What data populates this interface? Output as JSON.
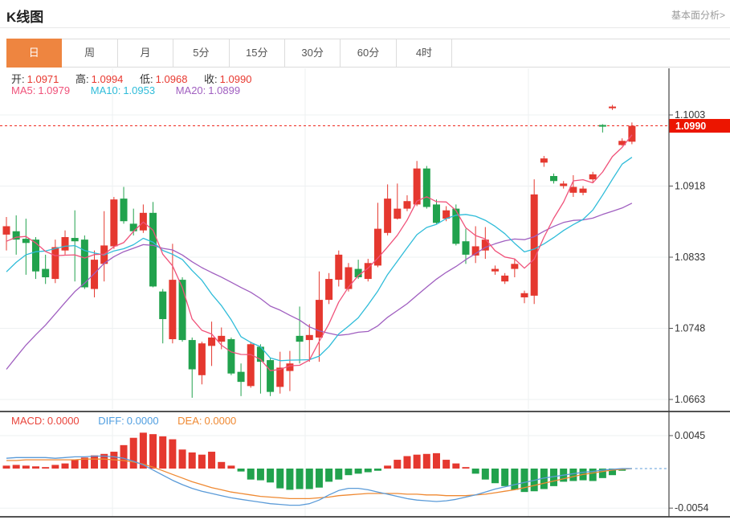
{
  "header": {
    "title": "K线图",
    "analysis_link": "基本面分析>"
  },
  "tabs": {
    "selected_index": 0,
    "items": [
      {
        "label": "日"
      },
      {
        "label": "周"
      },
      {
        "label": "月"
      },
      {
        "label": "5分"
      },
      {
        "label": "15分"
      },
      {
        "label": "30分"
      },
      {
        "label": "60分"
      },
      {
        "label": "4时"
      }
    ]
  },
  "legend": {
    "ohlc": [
      {
        "label": "开:",
        "value": "1.0971",
        "color": "#e8382f"
      },
      {
        "label": "高:",
        "value": "1.0994",
        "color": "#e8382f"
      },
      {
        "label": "低:",
        "value": "1.0968",
        "color": "#e8382f"
      },
      {
        "label": "收:",
        "value": "1.0990",
        "color": "#e8382f"
      }
    ],
    "ma": [
      {
        "label": "MA5:",
        "value": "1.0979",
        "color": "#f0527a"
      },
      {
        "label": "MA10:",
        "value": "1.0953",
        "color": "#2fbcd9"
      },
      {
        "label": "MA20:",
        "value": "1.0899",
        "color": "#a05fc0"
      }
    ],
    "macd": [
      {
        "label": "MACD:",
        "value": "0.0000",
        "color": "#e9443b"
      },
      {
        "label": "DIFF:",
        "value": "0.0000",
        "color": "#4f9ee0"
      },
      {
        "label": "DEA:",
        "value": "0.0000",
        "color": "#ef8932"
      }
    ]
  },
  "chart_data": {
    "type": "candlestick_with_macd",
    "period_shown": "日",
    "price_axis_ticks": [
      1.1003,
      1.0918,
      1.0833,
      1.0748,
      1.0663
    ],
    "current_price": 1.099,
    "last_ohlc": {
      "open": 1.0971,
      "high": 1.0994,
      "low": 1.0968,
      "close": 1.099
    },
    "ma_values_shown": {
      "MA5": 1.0979,
      "MA10": 1.0953,
      "MA20": 1.0899
    },
    "macd_values_shown": {
      "MACD": 0.0,
      "DIFF": 0.0,
      "DEA": 0.0
    },
    "macd_axis_ticks": [
      0.0045,
      -0.0054
    ],
    "candles_ohlc": [
      [
        1.086,
        1.0881,
        1.0841,
        1.087
      ],
      [
        1.0864,
        1.0883,
        1.0836,
        1.0854
      ],
      [
        1.0855,
        1.0879,
        1.0812,
        1.085
      ],
      [
        1.0854,
        1.0857,
        1.0807,
        1.0816
      ],
      [
        1.0819,
        1.0836,
        1.0801,
        1.0809
      ],
      [
        1.0807,
        1.0854,
        1.0802,
        1.0845
      ],
      [
        1.0841,
        1.0865,
        1.0836,
        1.0857
      ],
      [
        1.0856,
        1.0889,
        1.0804,
        1.0852
      ],
      [
        1.0854,
        1.0859,
        1.0795,
        1.0797
      ],
      [
        1.0795,
        1.0841,
        1.0785,
        1.083
      ],
      [
        1.0825,
        1.0888,
        1.0804,
        1.0847
      ],
      [
        1.0846,
        1.0905,
        1.0843,
        1.0902
      ],
      [
        1.0903,
        1.0917,
        1.0873,
        1.0876
      ],
      [
        1.0873,
        1.0891,
        1.0859,
        1.0864
      ],
      [
        1.0865,
        1.0896,
        1.0862,
        1.0886
      ],
      [
        1.0886,
        1.0899,
        1.0797,
        1.0798
      ],
      [
        1.0792,
        1.0795,
        1.073,
        1.0759
      ],
      [
        1.0735,
        1.0849,
        1.073,
        1.0806
      ],
      [
        1.0806,
        1.0809,
        1.0732,
        1.0734
      ],
      [
        1.0734,
        1.0737,
        1.0665,
        1.0699
      ],
      [
        1.0692,
        1.0732,
        1.0681,
        1.073
      ],
      [
        1.0727,
        1.0756,
        1.0703,
        1.0737
      ],
      [
        1.0732,
        1.0749,
        1.0723,
        1.0739
      ],
      [
        1.0735,
        1.0737,
        1.0692,
        1.0694
      ],
      [
        1.0696,
        1.0706,
        1.0667,
        1.0684
      ],
      [
        1.0679,
        1.0732,
        1.0677,
        1.0729
      ],
      [
        1.0726,
        1.0729,
        1.067,
        1.0708
      ],
      [
        1.071,
        1.0713,
        1.0667,
        1.0672
      ],
      [
        1.0678,
        1.072,
        1.067,
        1.0701
      ],
      [
        1.0697,
        1.0721,
        1.0673,
        1.0706
      ],
      [
        1.0739,
        1.0774,
        1.0706,
        1.0732
      ],
      [
        1.0734,
        1.0753,
        1.0708,
        1.074
      ],
      [
        1.0737,
        1.0816,
        1.0708,
        1.0782
      ],
      [
        1.0782,
        1.0814,
        1.0777,
        1.0807
      ],
      [
        1.0806,
        1.0841,
        1.0798,
        1.0836
      ],
      [
        1.0795,
        1.0826,
        1.0792,
        1.0821
      ],
      [
        1.0819,
        1.083,
        1.0807,
        1.0809
      ],
      [
        1.0807,
        1.0831,
        1.0804,
        1.0826
      ],
      [
        1.0823,
        1.0898,
        1.0821,
        1.0867
      ],
      [
        1.0862,
        1.092,
        1.0859,
        1.0903
      ],
      [
        1.0879,
        1.0921,
        1.0878,
        1.0891
      ],
      [
        1.0891,
        1.0907,
        1.0888,
        1.09
      ],
      [
        1.0896,
        1.0948,
        1.0894,
        1.0939
      ],
      [
        1.0939,
        1.0942,
        1.0891,
        1.0893
      ],
      [
        1.0896,
        1.0902,
        1.0873,
        1.0874
      ],
      [
        1.0879,
        1.0894,
        1.0876,
        1.0889
      ],
      [
        1.0891,
        1.0896,
        1.0847,
        1.0849
      ],
      [
        1.0852,
        1.0867,
        1.0825,
        1.0836
      ],
      [
        1.0835,
        1.087,
        1.0826,
        1.0846
      ],
      [
        1.0841,
        1.0869,
        1.0831,
        1.0854
      ],
      [
        1.0816,
        1.0823,
        1.0812,
        1.0819
      ],
      [
        1.0804,
        1.0814,
        1.0801,
        1.0811
      ],
      [
        1.0819,
        1.0831,
        1.0809,
        1.0825
      ],
      [
        1.0785,
        1.0793,
        1.0778,
        1.079
      ],
      [
        1.0787,
        1.0926,
        1.0777,
        1.0908
      ],
      [
        1.0946,
        1.0954,
        1.0941,
        1.0951
      ],
      [
        1.093,
        1.0933,
        1.0921,
        1.0924
      ],
      [
        1.0918,
        1.0924,
        1.0915,
        1.0921
      ],
      [
        1.091,
        1.0931,
        1.0905,
        1.0917
      ],
      [
        1.091,
        1.0918,
        1.0907,
        1.0915
      ],
      [
        1.0926,
        1.0935,
        1.0922,
        1.0932
      ],
      [
        1.0991,
        1.0992,
        1.0982,
        1.0989
      ],
      [
        1.1011,
        1.1015,
        1.1009,
        1.1013
      ],
      [
        1.0967,
        1.0975,
        1.0966,
        1.0972
      ],
      [
        1.0971,
        1.0994,
        1.0968,
        1.099
      ]
    ],
    "ma_periods": [
      5,
      10,
      20
    ],
    "ma_seed_pre_window_closes": [
      1.056,
      1.0565,
      1.057,
      1.0575,
      1.058,
      1.0585,
      1.059,
      1.0595,
      1.06,
      1.0605,
      1.074,
      1.076,
      1.078,
      1.08,
      1.0815,
      1.083,
      1.0845,
      1.0855,
      1.086
    ],
    "macd_hist": [
      0.0004,
      0.0005,
      0.0004,
      0.0003,
      0.0002,
      0.0005,
      0.0007,
      0.0012,
      0.0015,
      0.0018,
      0.002,
      0.0023,
      0.0032,
      0.0042,
      0.0049,
      0.0047,
      0.0044,
      0.004,
      0.0026,
      0.0022,
      0.0019,
      0.0023,
      0.0009,
      0.0004,
      -0.0004,
      -0.0015,
      -0.0016,
      -0.0019,
      -0.0027,
      -0.0029,
      -0.0028,
      -0.0028,
      -0.0026,
      -0.0018,
      -0.0015,
      -0.0009,
      -0.0007,
      -0.0005,
      -0.0003,
      0.0004,
      0.0012,
      0.0017,
      0.0019,
      0.002,
      0.0021,
      0.0012,
      0.0007,
      0.0002,
      -0.0007,
      -0.0015,
      -0.002,
      -0.0024,
      -0.0029,
      -0.0032,
      -0.0031,
      -0.0028,
      -0.0024,
      -0.0018,
      -0.0017,
      -0.0016,
      -0.0017,
      -0.0013,
      -0.0009,
      -0.0003,
      0.0
    ],
    "macd_diff": [
      0.0014,
      0.0015,
      0.0015,
      0.0015,
      0.0015,
      0.0014,
      0.0015,
      0.0016,
      0.0016,
      0.0017,
      0.0017,
      0.0016,
      0.0014,
      0.001,
      0.0005,
      -0.0002,
      -0.0009,
      -0.0016,
      -0.0022,
      -0.0027,
      -0.0031,
      -0.0034,
      -0.0037,
      -0.004,
      -0.0042,
      -0.0044,
      -0.0046,
      -0.0048,
      -0.0049,
      -0.005,
      -0.005,
      -0.0048,
      -0.0043,
      -0.0036,
      -0.003,
      -0.0027,
      -0.0027,
      -0.0029,
      -0.0032,
      -0.0035,
      -0.0038,
      -0.0041,
      -0.0043,
      -0.0044,
      -0.0045,
      -0.0044,
      -0.0042,
      -0.0039,
      -0.0036,
      -0.0032,
      -0.0028,
      -0.0025,
      -0.0022,
      -0.0019,
      -0.0016,
      -0.0013,
      -0.0011,
      -0.0009,
      -0.0007,
      -0.0005,
      -0.0004,
      -0.0002,
      -0.0001,
      0.0,
      0.0
    ],
    "macd_dea": [
      0.0011,
      0.0011,
      0.0012,
      0.0012,
      0.0012,
      0.0012,
      0.0012,
      0.0012,
      0.0013,
      0.0013,
      0.0013,
      0.0012,
      0.0011,
      0.0009,
      0.0006,
      0.0002,
      -0.0003,
      -0.0008,
      -0.0013,
      -0.0018,
      -0.0022,
      -0.0026,
      -0.0029,
      -0.0032,
      -0.0034,
      -0.0036,
      -0.0038,
      -0.0039,
      -0.004,
      -0.0041,
      -0.0041,
      -0.0041,
      -0.004,
      -0.0039,
      -0.0037,
      -0.0036,
      -0.0035,
      -0.0034,
      -0.0034,
      -0.0034,
      -0.0034,
      -0.0035,
      -0.0035,
      -0.0036,
      -0.0036,
      -0.0037,
      -0.0037,
      -0.0037,
      -0.0036,
      -0.0035,
      -0.0033,
      -0.0031,
      -0.0029,
      -0.0026,
      -0.0023,
      -0.002,
      -0.0017,
      -0.0014,
      -0.0011,
      -0.0008,
      -0.0006,
      -0.0004,
      -0.0002,
      -0.0001,
      0.0
    ],
    "colors": {
      "up": "#e5382f",
      "down": "#21a24d",
      "ma5": "#f0527a",
      "ma10": "#2fbcd9",
      "ma20": "#a05fc0",
      "diff_line": "#5b9bd8",
      "dea_line": "#ef8932",
      "current_price_line": "#ef2a20",
      "badge_bg": "#ec1500",
      "badge_text": "#ffffff",
      "grid": "#edf0f2",
      "axis": "#444444",
      "tick_text": "#333333",
      "selected_tab": "#ee8540"
    }
  }
}
